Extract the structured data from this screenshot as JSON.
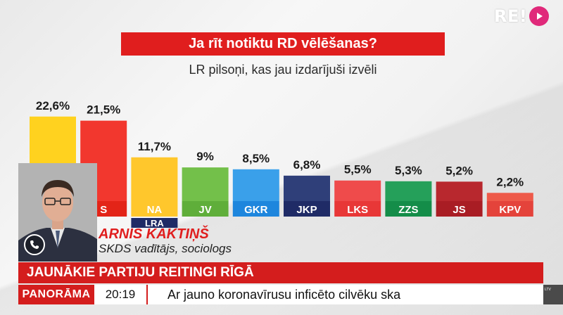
{
  "channel": {
    "logo_text": "RE!",
    "logo_color": "#e0297a"
  },
  "chart_data": {
    "type": "bar",
    "title": "Ja rīt notiktu RD vēlēšanas?",
    "subtitle": "LR pilsoņi, kas jau izdarījuši izvēli",
    "categories": [
      "",
      "S",
      "NA",
      "JV",
      "GKR",
      "JKP",
      "LKS",
      "ZZS",
      "JS",
      "KPV"
    ],
    "values": [
      22.6,
      21.5,
      11.7,
      9,
      8.5,
      6.8,
      5.5,
      5.3,
      5.2,
      2.2
    ],
    "value_labels": [
      "22,6%",
      "21,5%",
      "11,7%",
      "9%",
      "8,5%",
      "6,8%",
      "5,5%",
      "5,3%",
      "5,2%",
      "2,2%"
    ],
    "colors": [
      "#ffd21f",
      "#f2372e",
      "#ffc72c",
      "#73c04a",
      "#3aa0ea",
      "#2f3f79",
      "#ef4b4b",
      "#25a05a",
      "#b8282e",
      "#ee5a4a"
    ],
    "label_colors": [
      "#ffd21f",
      "#e32418",
      "#ffc72c",
      "#5fae3a",
      "#1e86dd",
      "#1f2b66",
      "#e83737",
      "#148d49",
      "#a91d24",
      "#e4433b"
    ],
    "extra_label": "LRA",
    "ylim": [
      0,
      25
    ],
    "grid": false,
    "legend": "none"
  },
  "guest": {
    "name": "ARNIS KAKTIŅŠ",
    "role": "SKDS vadītājs, sociologs"
  },
  "headline": "JAUNĀKIE PARTIJU REITINGI RĪGĀ",
  "ticker": {
    "brand": "PANORĀMA",
    "time": "20:19",
    "text": "Ar jauno koronavīrusu inficēto cilvēku ska"
  },
  "corner_badge": "LTV",
  "icons": {
    "call": "phone-icon",
    "play": "play-icon"
  }
}
